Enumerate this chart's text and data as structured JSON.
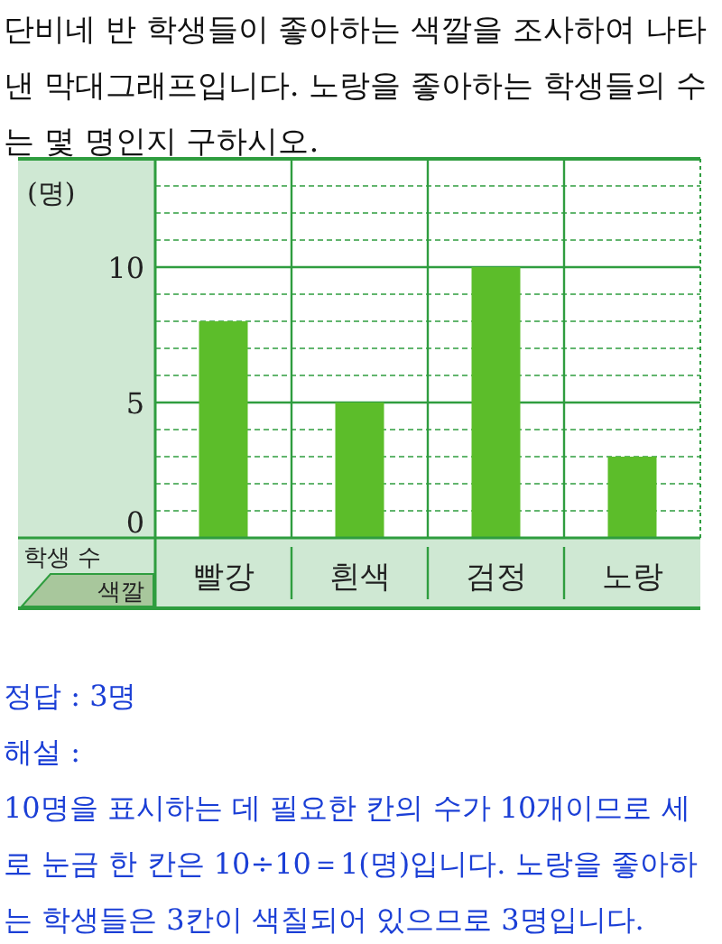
{
  "chart_data": {
    "type": "bar",
    "title": "단비네 반 학생들이 좋아하는 색깔을 조사하여 나타낸 막대그래프입니다. 노랑을 좋아하는 학생들의 수는 몇 명인지 구하시오.",
    "xlabel": "색깔",
    "ylabel": "학생 수",
    "categories": [
      "빨강",
      "흰색",
      "검정",
      "노랑"
    ],
    "values": [
      8,
      5,
      10,
      3
    ],
    "color": "#5cbd2a",
    "ylim": [
      0,
      14
    ],
    "yticks": [
      0,
      {
        "value": 1,
        "label": null
      },
      {
        "value": 2,
        "label": null
      },
      {
        "value": 3,
        "label": null
      },
      {
        "value": 4,
        "label": null
      },
      5,
      {
        "value": 6,
        "label": null
      },
      {
        "value": 7,
        "label": null
      },
      {
        "value": 8,
        "label": null
      },
      {
        "value": 9,
        "label": null
      },
      10,
      {
        "value": 11,
        "label": null
      },
      {
        "value": 12,
        "label": null
      },
      {
        "value": 13,
        "label": null
      }
    ],
    "grid": "y",
    "annotations": [
      "(명)",
      "정답 : 3명",
      "해설 :",
      "10명을 표시하는 데 필요한 칸의 수가 10개이므로 세로 눈금 한 칸은 10÷10＝1(명)입니다. 노랑을 좋아하는 학생들은 3칸이 색칠되어 있으므로 3명입니다."
    ]
  }
}
